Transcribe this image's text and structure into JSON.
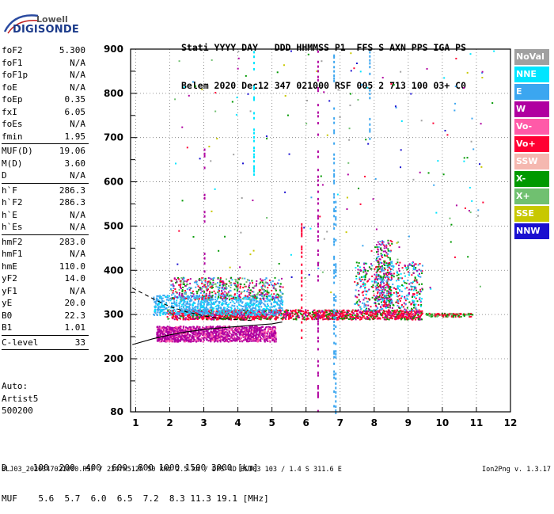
{
  "logo": {
    "top": "Lowell",
    "bottom": "DIGISONDE"
  },
  "header": {
    "line1": "Stati YYYY DAY   DDD HHMMSS P1  FFS S AXN PPS IGA PS",
    "line2": "Belem 2020 Dec12 347 021000 RSF 005 2 713 100 03+ C0"
  },
  "params": [
    {
      "label": "foF2",
      "value": "5.300"
    },
    {
      "label": "foF1",
      "value": "N/A"
    },
    {
      "label": "foF1p",
      "value": "N/A"
    },
    {
      "label": "foE",
      "value": "N/A"
    },
    {
      "label": "foEp",
      "value": "0.35"
    },
    {
      "label": "fxI",
      "value": "6.05"
    },
    {
      "label": "foEs",
      "value": "N/A"
    },
    {
      "label": "fmin",
      "value": "1.95"
    },
    {
      "sep": true
    },
    {
      "label": "MUF(D)",
      "value": "19.06"
    },
    {
      "label": "M(D)",
      "value": "3.60"
    },
    {
      "label": "D",
      "value": "N/A"
    },
    {
      "sep": true
    },
    {
      "label": "h`F",
      "value": "286.3"
    },
    {
      "label": "h`F2",
      "value": "286.3"
    },
    {
      "label": "h`E",
      "value": "N/A"
    },
    {
      "label": "h`Es",
      "value": "N/A"
    },
    {
      "sep": true
    },
    {
      "label": "hmF2",
      "value": "283.0"
    },
    {
      "label": "hmF1",
      "value": "N/A"
    },
    {
      "label": "hmE",
      "value": "110.0"
    },
    {
      "label": "yF2",
      "value": "14.0"
    },
    {
      "label": "yF1",
      "value": "N/A"
    },
    {
      "label": "yE",
      "value": "20.0"
    },
    {
      "label": "B0",
      "value": "22.3"
    },
    {
      "label": "B1",
      "value": "1.01"
    },
    {
      "sep": true
    },
    {
      "label": "C-level",
      "value": "33"
    },
    {
      "sep": true
    }
  ],
  "auto": {
    "line1": "Auto:",
    "line2": "Artist5",
    "line3": "500200"
  },
  "legend": [
    {
      "label": "NoVal",
      "color": "#a0a0a0"
    },
    {
      "label": "NNE",
      "color": "#00e5ff"
    },
    {
      "label": "E",
      "color": "#3ba6f0"
    },
    {
      "label": "W",
      "color": "#b000a0"
    },
    {
      "label": "Vo-",
      "color": "#ff5aa8"
    },
    {
      "label": "Vo+",
      "color": "#ff0033"
    },
    {
      "label": "SSW",
      "color": "#f5b8b0"
    },
    {
      "label": "X-",
      "color": "#009900"
    },
    {
      "label": "X+",
      "color": "#70c070"
    },
    {
      "label": "SSE",
      "color": "#c8c800"
    },
    {
      "label": "NNW",
      "color": "#1a10d0"
    }
  ],
  "dtable": {
    "row1": "D     100  200  400  600  800 1000 1500 3000 [km]",
    "row2": "MUF    5.6  5.7  6.0  6.5  7.2  8.3 11.3 19.1 [MHz]"
  },
  "footer": {
    "left": "BLJ03_2020347021000.RSF / 224fx512h 50 kHz 2.5 km / DPS-4D BLJ03 103 / 1.4 S 311.6 E",
    "right": "Ion2Png v. 1.3.17"
  },
  "chart_data": {
    "type": "scatter",
    "x_ticks": [
      "1",
      "2",
      "3",
      "4",
      "5",
      "6",
      "7",
      "8",
      "9",
      "10",
      "11",
      "12"
    ],
    "y_ticks": [
      "80",
      "200",
      "300",
      "400",
      "500",
      "600",
      "700",
      "800",
      "900"
    ],
    "xlim": [
      0.85,
      12.0
    ],
    "ylim": [
      80,
      900
    ],
    "x_unit": "MHz",
    "y_unit": "km",
    "grid": true,
    "legend_position": "right",
    "traces": [
      {
        "name": "W",
        "x_range": [
          1.6,
          5.1
        ],
        "h_range": [
          240,
          275
        ],
        "color": "#b000a0"
      },
      {
        "name": "Vo+",
        "x_range": [
          1.9,
          9.5
        ],
        "h_range": [
          290,
          315
        ],
        "color": "#ff0033"
      },
      {
        "name": "E",
        "x_range": [
          1.5,
          5.3
        ],
        "h_range": [
          300,
          345
        ],
        "color": "#3ba6f0"
      },
      {
        "name": "Vo+ tail",
        "x_range": [
          9.5,
          10.9
        ],
        "h_range": [
          297,
          303
        ],
        "color": "#ff0033"
      }
    ],
    "profile_dashed": {
      "x": [
        0.9,
        1.5,
        2.0,
        2.5,
        3.0,
        3.5,
        4.0,
        4.5
      ],
      "y": [
        360,
        336,
        318,
        306,
        297,
        291,
        288,
        286
      ]
    },
    "profile_solid": {
      "x": [
        0.9,
        1.5,
        2.0,
        2.5,
        3.0,
        3.5,
        4.0,
        4.5,
        5.0,
        5.3
      ],
      "y": [
        232,
        245,
        254,
        261,
        266,
        270,
        273,
        276,
        279,
        283
      ]
    }
  }
}
